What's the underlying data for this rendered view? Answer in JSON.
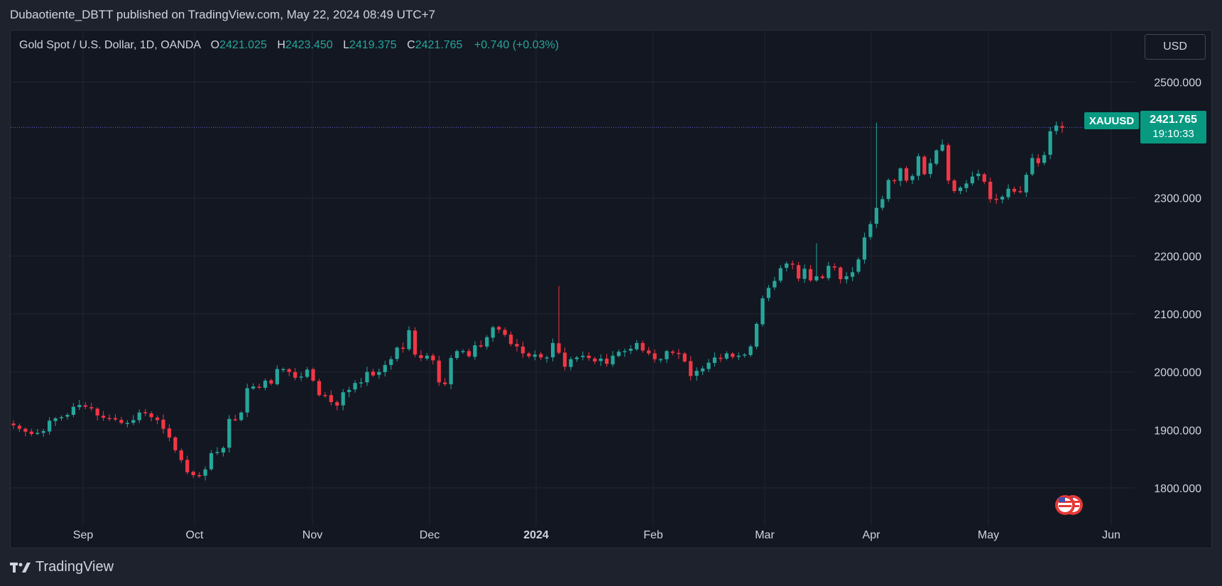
{
  "caption": "Dubaotiente_DBTT published on TradingView.com, May 22, 2024 08:49 UTC+7",
  "legend": {
    "symbol": "Gold Spot / U.S. Dollar, 1D, OANDA",
    "open_label": "O",
    "open": "2421.025",
    "high_label": "H",
    "high": "2423.450",
    "low_label": "L",
    "low": "2419.375",
    "close_label": "C",
    "close": "2421.765",
    "change": "+0.740 (+0.03%)"
  },
  "currency_button": "USD",
  "ticker_tag": "XAUUSD",
  "last_price": "2421.765",
  "countdown": "19:10:33",
  "brand": "TradingView",
  "colors": {
    "up": "#26a69a",
    "down": "#f23645",
    "background": "#131722",
    "tag": "#089981"
  },
  "chart_data": {
    "type": "candlestick",
    "title": "Gold Spot / U.S. Dollar, 1D, OANDA",
    "ylim": [
      1735,
      2590
    ],
    "y_ticks": [
      "2500.000",
      "2300.000",
      "2200.000",
      "2100.000",
      "2000.000",
      "1900.000",
      "1800.000"
    ],
    "x_ticks": [
      "Sep",
      "Oct",
      "Nov",
      "Dec",
      "2024",
      "Feb",
      "Mar",
      "Apr",
      "May",
      "Jun"
    ],
    "last_price": 2421.765,
    "grid": true,
    "close_series": [
      1908,
      1902,
      1897,
      1893,
      1895,
      1898,
      1916,
      1920,
      1922,
      1926,
      1940,
      1943,
      1940,
      1937,
      1925,
      1921,
      1920,
      1918,
      1912,
      1912,
      1917,
      1930,
      1929,
      1922,
      1917,
      1902,
      1887,
      1865,
      1848,
      1827,
      1822,
      1820,
      1832,
      1860,
      1862,
      1869,
      1919,
      1918,
      1930,
      1972,
      1975,
      1973,
      1985,
      1980,
      2005,
      2005,
      2000,
      1990,
      1992,
      2004,
      1985,
      1960,
      1960,
      1948,
      1942,
      1965,
      1969,
      1981,
      1982,
      2000,
      1994,
      2000,
      2012,
      2022,
      2042,
      2040,
      2072,
      2030,
      2024,
      2028,
      2020,
      1982,
      1979,
      2024,
      2036,
      2036,
      2027,
      2046,
      2044,
      2060,
      2077,
      2073,
      2064,
      2048,
      2044,
      2032,
      2027,
      2030,
      2025,
      2025,
      2050,
      2033,
      2009,
      2022,
      2025,
      2028,
      2024,
      2018,
      2023,
      2014,
      2028,
      2035,
      2036,
      2040,
      2050,
      2037,
      2032,
      2022,
      2022,
      2036,
      2033,
      2031,
      2018,
      1993,
      2002,
      2006,
      2016,
      2025,
      2024,
      2032,
      2026,
      2028,
      2030,
      2044,
      2083,
      2127,
      2145,
      2157,
      2179,
      2187,
      2185,
      2161,
      2178,
      2158,
      2165,
      2162,
      2183,
      2180,
      2160,
      2165,
      2172,
      2194,
      2232,
      2255,
      2283,
      2298,
      2331,
      2330,
      2351,
      2330,
      2338,
      2372,
      2341,
      2360,
      2382,
      2392,
      2330,
      2312,
      2318,
      2325,
      2337,
      2342,
      2328,
      2298,
      2298,
      2302,
      2316,
      2311,
      2310,
      2340,
      2369,
      2360,
      2374,
      2415,
      2425,
      2421
    ]
  }
}
